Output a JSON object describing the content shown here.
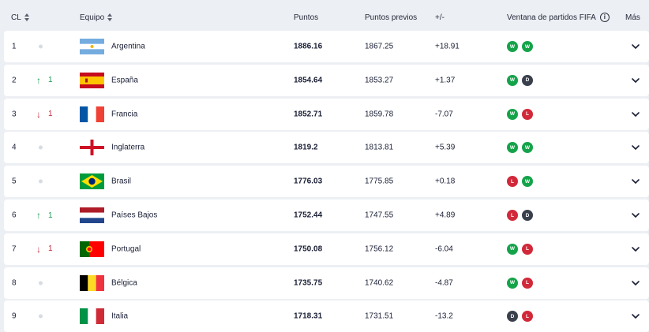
{
  "header": {
    "rank": "CL",
    "team": "Equipo",
    "points": "Puntos",
    "prev_points": "Puntos previos",
    "diff": "+/-",
    "window": "Ventana de partidos FIFA",
    "more": "Más"
  },
  "colors": {
    "win": "#15a34a",
    "draw": "#3a3f4c",
    "loss": "#d1293a",
    "up": "#1c9a52",
    "down": "#c8293a"
  },
  "rows": [
    {
      "rank": "1",
      "movement": null,
      "move_count": "",
      "team": "Argentina",
      "flag": "argentina",
      "points": "1886.16",
      "prev": "1867.25",
      "diff": "+18.91",
      "results": [
        "W",
        "W"
      ]
    },
    {
      "rank": "2",
      "movement": "up",
      "move_count": "1",
      "team": "España",
      "flag": "spain",
      "points": "1854.64",
      "prev": "1853.27",
      "diff": "+1.37",
      "results": [
        "W",
        "D"
      ]
    },
    {
      "rank": "3",
      "movement": "down",
      "move_count": "1",
      "team": "Francia",
      "flag": "france",
      "points": "1852.71",
      "prev": "1859.78",
      "diff": "-7.07",
      "results": [
        "W",
        "L"
      ]
    },
    {
      "rank": "4",
      "movement": null,
      "move_count": "",
      "team": "Inglaterra",
      "flag": "england",
      "points": "1819.2",
      "prev": "1813.81",
      "diff": "+5.39",
      "results": [
        "W",
        "W"
      ]
    },
    {
      "rank": "5",
      "movement": null,
      "move_count": "",
      "team": "Brasil",
      "flag": "brazil",
      "points": "1776.03",
      "prev": "1775.85",
      "diff": "+0.18",
      "results": [
        "L",
        "W"
      ]
    },
    {
      "rank": "6",
      "movement": "up",
      "move_count": "1",
      "team": "Países Bajos",
      "flag": "netherlands",
      "points": "1752.44",
      "prev": "1747.55",
      "diff": "+4.89",
      "results": [
        "L",
        "D"
      ]
    },
    {
      "rank": "7",
      "movement": "down",
      "move_count": "1",
      "team": "Portugal",
      "flag": "portugal",
      "points": "1750.08",
      "prev": "1756.12",
      "diff": "-6.04",
      "results": [
        "W",
        "L"
      ]
    },
    {
      "rank": "8",
      "movement": null,
      "move_count": "",
      "team": "Bélgica",
      "flag": "belgium",
      "points": "1735.75",
      "prev": "1740.62",
      "diff": "-4.87",
      "results": [
        "W",
        "L"
      ]
    },
    {
      "rank": "9",
      "movement": null,
      "move_count": "",
      "team": "Italia",
      "flag": "italy",
      "points": "1718.31",
      "prev": "1731.51",
      "diff": "-13.2",
      "results": [
        "D",
        "L"
      ]
    }
  ]
}
